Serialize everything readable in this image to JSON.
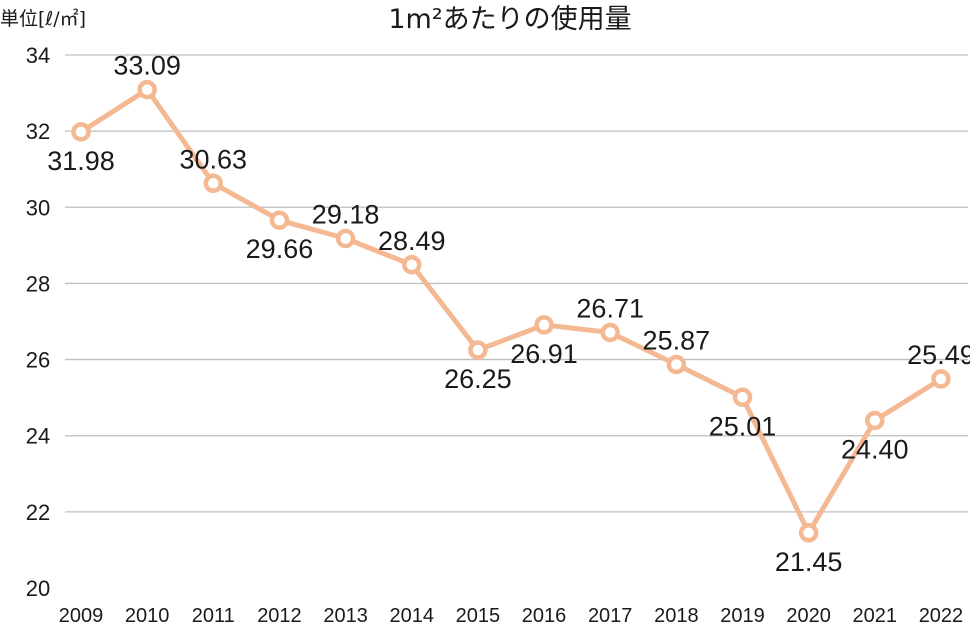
{
  "chart_data": {
    "type": "line",
    "title": "1m²あたりの使用量",
    "unit_label": "単位[ℓ/㎡]",
    "xlabel": "",
    "ylabel": "",
    "ylim": [
      20,
      34
    ],
    "y_ticks": [
      20,
      22,
      24,
      26,
      28,
      30,
      32,
      34
    ],
    "grid": true,
    "x": [
      "2009",
      "2010",
      "2011",
      "2012",
      "2013",
      "2014",
      "2015",
      "2016",
      "2017",
      "2018",
      "2019",
      "2020",
      "2021",
      "2022"
    ],
    "series": [
      {
        "values": [
          31.98,
          33.09,
          30.63,
          29.66,
          29.18,
          28.49,
          26.25,
          26.91,
          26.71,
          25.87,
          25.01,
          21.45,
          24.4,
          25.49
        ],
        "labels": [
          "31.98",
          "33.09",
          "30.63",
          "29.66",
          "29.18",
          "28.49",
          "26.25",
          "26.91",
          "26.71",
          "25.87",
          "25.01",
          "21.45",
          "24.40",
          "25.49"
        ],
        "color": "#f4b993"
      }
    ]
  }
}
